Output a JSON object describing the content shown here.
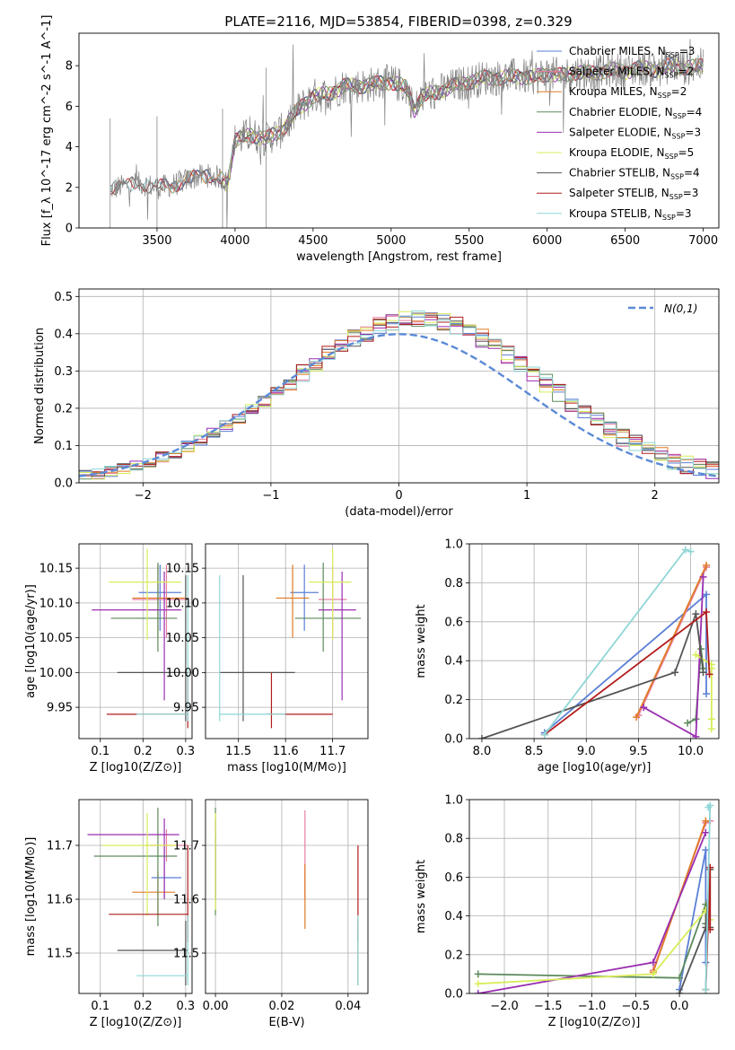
{
  "figure_title": "PLATE=2116, MJD=53854, FIBERID=0398, z=0.329",
  "colors": {
    "Chabrier MILES": "#5b7fd6",
    "Salpeter MILES": "#e87fa0",
    "Kroupa MILES": "#e07b26",
    "Chabrier ELODIE": "#5c8a5c",
    "Salpeter ELODIE": "#9a2fb0",
    "Kroupa ELODIE": "#d9ec5a",
    "Chabrier STELIB": "#555555",
    "Salpeter STELIB": "#b21c1c",
    "Kroupa STELIB": "#8fd6d6",
    "data": "#808080",
    "normal": "#5b8ad6"
  },
  "chart_data": [
    {
      "id": "spectrum",
      "type": "line",
      "xlabel": "wavelength [Angstrom, rest frame]",
      "ylabel": "Flux [f_λ 10^-17 erg cm^-2 s^-1 A^-1]",
      "xlim": [
        3000,
        7100
      ],
      "ylim": [
        0,
        9.6
      ],
      "xticks": [
        3500,
        4000,
        4500,
        5000,
        5500,
        6000,
        6500,
        7000
      ],
      "yticks": [
        0,
        2,
        4,
        6,
        8
      ],
      "grid": false,
      "legend_position": "top-right",
      "legend": [
        {
          "name": "Chabrier MILES",
          "nssp": "3"
        },
        {
          "name": "Salpeter MILES",
          "nssp": "2"
        },
        {
          "name": "Kroupa MILES",
          "nssp": "2"
        },
        {
          "name": "Chabrier ELODIE",
          "nssp": "4"
        },
        {
          "name": "Salpeter ELODIE",
          "nssp": "3"
        },
        {
          "name": "Kroupa ELODIE",
          "nssp": "5"
        },
        {
          "name": "Chabrier STELIB",
          "nssp": "4"
        },
        {
          "name": "Salpeter STELIB",
          "nssp": "3"
        },
        {
          "name": "Kroupa STELIB",
          "nssp": "3"
        }
      ],
      "continuum": {
        "x": [
          3200,
          3300,
          3400,
          3500,
          3600,
          3700,
          3800,
          3900,
          3950,
          4000,
          4100,
          4200,
          4300,
          4400,
          4500,
          4600,
          4700,
          4800,
          4900,
          5000,
          5100,
          5150,
          5200,
          5300,
          5400,
          5500,
          5600,
          5700,
          5800,
          5900,
          6000,
          6100,
          6200,
          6300,
          6400,
          6500,
          6600,
          6700,
          6800,
          6900,
          7000
        ],
        "y": [
          1.9,
          2.1,
          2.2,
          2.0,
          2.1,
          2.4,
          2.6,
          2.5,
          2.2,
          4.3,
          4.6,
          4.4,
          4.8,
          5.8,
          6.5,
          6.6,
          7.0,
          7.0,
          7.1,
          7.2,
          6.9,
          5.8,
          6.5,
          6.7,
          7.0,
          7.2,
          7.4,
          7.4,
          7.5,
          7.4,
          7.6,
          7.5,
          7.7,
          7.6,
          7.8,
          7.7,
          7.9,
          7.8,
          8.0,
          7.9,
          8.0
        ]
      }
    },
    {
      "id": "residuals",
      "type": "histogram",
      "xlabel": "(data-model)/error",
      "ylabel": "Normed distribution",
      "xlim": [
        -2.5,
        2.5
      ],
      "ylim": [
        0,
        0.52
      ],
      "xticks": [
        -2,
        -1,
        0,
        1,
        2
      ],
      "yticks": [
        0.0,
        0.1,
        0.2,
        0.3,
        0.4,
        0.5
      ],
      "grid": true,
      "legend_position": "top-right",
      "legend_label": "N(0,1)",
      "bin_width": 0.1
    },
    {
      "id": "age-vs-Z",
      "type": "errorbar",
      "xlabel": "Z [log10(Z/Z⊙)]",
      "ylabel": "age  [log10(age/yr)]",
      "xlim": [
        0.05,
        0.315
      ],
      "ylim": [
        9.905,
        10.185
      ],
      "xticks": [
        0.1,
        0.2,
        0.3
      ],
      "yticks": [
        9.95,
        10.0,
        10.05,
        10.1,
        10.15
      ],
      "grid": true,
      "points": [
        {
          "model": "Chabrier MILES",
          "x": 0.24,
          "xlo": 0.19,
          "xhi": 0.29,
          "y": 10.115,
          "ylo": 10.06,
          "yhi": 10.155
        },
        {
          "model": "Salpeter MILES",
          "x": 0.255,
          "xlo": 0.175,
          "xhi": 0.305,
          "y": 10.105,
          "ylo": 10.05,
          "yhi": 10.155
        },
        {
          "model": "Kroupa MILES",
          "x": 0.235,
          "xlo": 0.175,
          "xhi": 0.305,
          "y": 10.107,
          "ylo": 10.05,
          "yhi": 10.155
        },
        {
          "model": "Chabrier ELODIE",
          "x": 0.235,
          "xlo": 0.125,
          "xhi": 0.28,
          "y": 10.078,
          "ylo": 10.03,
          "yhi": 10.158
        },
        {
          "model": "Salpeter ELODIE",
          "x": 0.25,
          "xlo": 0.08,
          "xhi": 0.29,
          "y": 10.09,
          "ylo": 9.96,
          "yhi": 10.145
        },
        {
          "model": "Kroupa ELODIE",
          "x": 0.21,
          "xlo": 0.12,
          "xhi": 0.29,
          "y": 10.13,
          "ylo": 10.047,
          "yhi": 10.178
        },
        {
          "model": "Chabrier STELIB",
          "x": 0.3,
          "xlo": 0.14,
          "xhi": 0.305,
          "y": 10.0,
          "ylo": 9.93,
          "yhi": 10.14
        },
        {
          "model": "Salpeter STELIB",
          "x": 0.305,
          "xlo": 0.115,
          "xhi": 0.305,
          "y": 9.94,
          "ylo": 9.92,
          "yhi": 10.0
        },
        {
          "model": "Kroupa STELIB",
          "x": 0.305,
          "xlo": 0.185,
          "xhi": 0.305,
          "y": 9.94,
          "ylo": 9.93,
          "yhi": 10.14
        }
      ]
    },
    {
      "id": "age-vs-mass",
      "type": "errorbar",
      "xlabel": "mass [log10(M/M⊙)]",
      "ylabel": "",
      "xlim": [
        11.43,
        11.775
      ],
      "ylim": [
        9.905,
        10.185
      ],
      "xticks": [
        11.5,
        11.6,
        11.7
      ],
      "yticks": [
        9.95,
        10.0,
        10.05,
        10.1,
        10.15
      ],
      "grid": true,
      "points": [
        {
          "model": "Chabrier MILES",
          "x": 11.64,
          "xlo": 11.61,
          "xhi": 11.67,
          "y": 10.115,
          "ylo": 10.06,
          "yhi": 10.155
        },
        {
          "model": "Salpeter MILES",
          "x": 11.7,
          "xlo": 11.67,
          "xhi": 11.73,
          "y": 10.105,
          "ylo": 10.05,
          "yhi": 10.155
        },
        {
          "model": "Kroupa MILES",
          "x": 11.615,
          "xlo": 11.58,
          "xhi": 11.65,
          "y": 10.107,
          "ylo": 10.05,
          "yhi": 10.155
        },
        {
          "model": "Chabrier ELODIE",
          "x": 11.68,
          "xlo": 11.62,
          "xhi": 11.76,
          "y": 10.078,
          "ylo": 10.03,
          "yhi": 10.158
        },
        {
          "model": "Salpeter ELODIE",
          "x": 11.72,
          "xlo": 11.67,
          "xhi": 11.75,
          "y": 10.09,
          "ylo": 9.96,
          "yhi": 10.145
        },
        {
          "model": "Kroupa ELODIE",
          "x": 11.7,
          "xlo": 11.65,
          "xhi": 11.74,
          "y": 10.13,
          "ylo": 10.047,
          "yhi": 10.178
        },
        {
          "model": "Chabrier STELIB",
          "x": 11.51,
          "xlo": 11.46,
          "xhi": 11.62,
          "y": 10.0,
          "ylo": 9.93,
          "yhi": 10.14
        },
        {
          "model": "Salpeter STELIB",
          "x": 11.57,
          "xlo": 11.56,
          "xhi": 11.7,
          "y": 9.94,
          "ylo": 9.92,
          "yhi": 10.0
        },
        {
          "model": "Kroupa STELIB",
          "x": 11.46,
          "xlo": 11.46,
          "xhi": 11.6,
          "y": 9.94,
          "ylo": 9.93,
          "yhi": 10.14
        }
      ]
    },
    {
      "id": "weight-vs-age",
      "type": "line",
      "xlabel": "age  [log10(age/yr)]",
      "ylabel": "mass weight",
      "xlim": [
        7.88,
        10.27
      ],
      "ylim": [
        0,
        1.0
      ],
      "xticks": [
        8.0,
        8.5,
        9.0,
        9.5,
        10.0
      ],
      "yticks": [
        0.0,
        0.2,
        0.4,
        0.6,
        0.8,
        1.0
      ],
      "grid": true,
      "series": [
        {
          "model": "Chabrier MILES",
          "x": [
            8.6,
            10.15,
            10.15
          ],
          "y": [
            0.03,
            0.74,
            0.23
          ]
        },
        {
          "model": "Salpeter MILES",
          "x": [
            9.5,
            10.15
          ],
          "y": [
            0.12,
            0.88
          ]
        },
        {
          "model": "Kroupa MILES",
          "x": [
            9.48,
            10.15
          ],
          "y": [
            0.11,
            0.89
          ]
        },
        {
          "model": "Chabrier ELODIE",
          "x": [
            9.97,
            10.05,
            10.1,
            10.12
          ],
          "y": [
            0.08,
            0.1,
            0.46,
            0.36
          ]
        },
        {
          "model": "Salpeter ELODIE",
          "x": [
            9.55,
            10.05,
            10.12
          ],
          "y": [
            0.16,
            0.01,
            0.83
          ]
        },
        {
          "model": "Kroupa ELODIE",
          "x": [
            10.05,
            10.2,
            10.2,
            10.2,
            10.2
          ],
          "y": [
            0.43,
            0.38,
            0.1,
            0.05,
            0.36
          ]
        },
        {
          "model": "Chabrier STELIB",
          "x": [
            8.0,
            9.85,
            10.05,
            10.12
          ],
          "y": [
            0.0,
            0.34,
            0.64,
            0.34
          ]
        },
        {
          "model": "Salpeter STELIB",
          "x": [
            8.6,
            10.15,
            10.18
          ],
          "y": [
            0.02,
            0.65,
            0.33
          ]
        },
        {
          "model": "Kroupa STELIB",
          "x": [
            8.6,
            9.95,
            10.0
          ],
          "y": [
            0.02,
            0.97,
            0.96
          ]
        }
      ]
    },
    {
      "id": "mass-vs-Z",
      "type": "errorbar",
      "xlabel": "Z [log10(Z/Z⊙)]",
      "ylabel": "mass [log10(M/M⊙)]",
      "xlim": [
        0.05,
        0.315
      ],
      "ylim": [
        11.425,
        11.785
      ],
      "xticks": [
        0.1,
        0.2,
        0.3
      ],
      "yticks": [
        11.5,
        11.6,
        11.7
      ],
      "grid": true,
      "points": [
        {
          "model": "Chabrier MILES",
          "x": 0.25,
          "xlo": 0.22,
          "xhi": 0.29,
          "y": 11.64,
          "ylo": 11.6,
          "yhi": 11.7
        },
        {
          "model": "Salpeter MILES",
          "x": 0.255,
          "xlo": 0.205,
          "xhi": 0.305,
          "y": 11.7,
          "ylo": 11.67,
          "yhi": 11.73
        },
        {
          "model": "Kroupa MILES",
          "x": 0.235,
          "xlo": 0.175,
          "xhi": 0.275,
          "y": 11.613,
          "ylo": 11.57,
          "yhi": 11.65
        },
        {
          "model": "Chabrier ELODIE",
          "x": 0.235,
          "xlo": 0.085,
          "xhi": 0.28,
          "y": 11.68,
          "ylo": 11.55,
          "yhi": 11.77
        },
        {
          "model": "Salpeter ELODIE",
          "x": 0.25,
          "xlo": 0.07,
          "xhi": 0.285,
          "y": 11.72,
          "ylo": 11.6,
          "yhi": 11.75
        },
        {
          "model": "Kroupa ELODIE",
          "x": 0.21,
          "xlo": 0.105,
          "xhi": 0.28,
          "y": 11.7,
          "ylo": 11.57,
          "yhi": 11.76
        },
        {
          "model": "Chabrier STELIB",
          "x": 0.3,
          "xlo": 0.14,
          "xhi": 0.305,
          "y": 11.505,
          "ylo": 11.44,
          "yhi": 11.56
        },
        {
          "model": "Salpeter STELIB",
          "x": 0.305,
          "xlo": 0.12,
          "xhi": 0.305,
          "y": 11.572,
          "ylo": 11.52,
          "yhi": 11.7
        },
        {
          "model": "Kroupa STELIB",
          "x": 0.305,
          "xlo": 0.185,
          "xhi": 0.305,
          "y": 11.458,
          "ylo": 11.44,
          "yhi": 11.57
        }
      ]
    },
    {
      "id": "mass-vs-EBV",
      "type": "errorbar",
      "xlabel": "E(B-V)",
      "ylabel": "",
      "xlim": [
        -0.003,
        0.046
      ],
      "ylim": [
        11.425,
        11.785
      ],
      "xticks": [
        0.0,
        0.02,
        0.04
      ],
      "yticks": [
        11.5,
        11.6,
        11.7
      ],
      "grid": true,
      "points": [
        {
          "model": "Chabrier MILES",
          "x": 0.0,
          "ylo": 11.6,
          "yhi": 11.72
        },
        {
          "model": "Salpeter MILES",
          "x": 0.027,
          "ylo": 11.6,
          "yhi": 11.765
        },
        {
          "model": "Kroupa MILES",
          "x": 0.027,
          "ylo": 11.545,
          "yhi": 11.665
        },
        {
          "model": "Chabrier ELODIE",
          "x": 0.0,
          "ylo": 11.57,
          "yhi": 11.77
        },
        {
          "model": "Salpeter ELODIE",
          "x": 0.0,
          "ylo": 11.6,
          "yhi": 11.75
        },
        {
          "model": "Kroupa ELODIE",
          "x": 0.0,
          "ylo": 11.58,
          "yhi": 11.76
        },
        {
          "model": "Chabrier STELIB",
          "x": 0.043,
          "ylo": 11.44,
          "yhi": 11.56
        },
        {
          "model": "Salpeter STELIB",
          "x": 0.043,
          "ylo": 11.52,
          "yhi": 11.7
        },
        {
          "model": "Kroupa STELIB",
          "x": 0.043,
          "ylo": 11.44,
          "yhi": 11.57
        }
      ]
    },
    {
      "id": "weight-vs-Z",
      "type": "line",
      "xlabel": "Z [log10(Z/Z⊙)]",
      "ylabel": "mass weight",
      "xlim": [
        -2.4,
        0.45
      ],
      "ylim": [
        0,
        1.0
      ],
      "xticks": [
        -2.0,
        -1.5,
        -1.0,
        -0.5,
        0.0
      ],
      "yticks": [
        0.0,
        0.2,
        0.4,
        0.6,
        0.8,
        1.0
      ],
      "grid": true,
      "series": [
        {
          "model": "Chabrier MILES",
          "x": [
            0.0,
            0.3,
            0.3
          ],
          "y": [
            0.02,
            0.74,
            0.16
          ]
        },
        {
          "model": "Salpeter MILES",
          "x": [
            -0.3,
            0.3,
            0.35
          ],
          "y": [
            0.12,
            0.88,
            0.89
          ]
        },
        {
          "model": "Kroupa MILES",
          "x": [
            -0.3,
            0.3
          ],
          "y": [
            0.11,
            0.89
          ]
        },
        {
          "model": "Chabrier ELODIE",
          "x": [
            -2.3,
            0.0,
            0.3,
            0.3
          ],
          "y": [
            0.1,
            0.08,
            0.46,
            0.36
          ]
        },
        {
          "model": "Salpeter ELODIE",
          "x": [
            -2.3,
            -0.3,
            0.3
          ],
          "y": [
            0.0,
            0.16,
            0.83
          ]
        },
        {
          "model": "Kroupa ELODIE",
          "x": [
            -2.3,
            -0.3,
            0.3,
            0.35
          ],
          "y": [
            0.05,
            0.1,
            0.43,
            0.38
          ]
        },
        {
          "model": "Chabrier STELIB",
          "x": [
            0.0,
            0.3,
            0.35,
            0.35
          ],
          "y": [
            0.0,
            0.34,
            0.64,
            0.34
          ]
        },
        {
          "model": "Salpeter STELIB",
          "x": [
            0.3,
            0.35,
            0.35
          ],
          "y": [
            0.02,
            0.65,
            0.33
          ]
        },
        {
          "model": "Kroupa STELIB",
          "x": [
            0.3,
            0.35,
            0.33
          ],
          "y": [
            0.02,
            0.97,
            0.96
          ]
        }
      ]
    }
  ]
}
